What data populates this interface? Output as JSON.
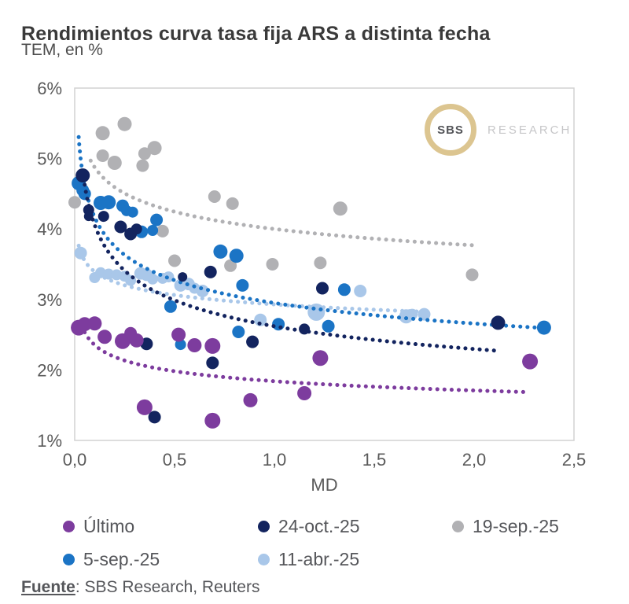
{
  "header": {
    "title": "Rendimientos curva tasa fija ARS a distinta fecha",
    "subtitle": "TEM, en %"
  },
  "logo": {
    "circle_text": "SBS",
    "side_text": "RESEARCH",
    "ring_color": "#dcc590"
  },
  "footer": {
    "source_label": "Fuente",
    "source_rest": ": SBS Research, Reuters"
  },
  "chart_data": {
    "type": "scatter",
    "title": "Rendimientos curva tasa fija ARS a distinta fecha",
    "subtitle": "TEM, en %",
    "xlabel": "MD",
    "ylabel": "TEM, en %",
    "xlim": [
      0,
      2.5
    ],
    "ylim": [
      1,
      6
    ],
    "grid": false,
    "legend_position": "bottom",
    "x_ticks": {
      "values": [
        0,
        0.5,
        1.0,
        1.5,
        2.0,
        2.5
      ],
      "labels": [
        "0,0",
        "0,5",
        "1,0",
        "1,5",
        "2,0",
        "2,5"
      ]
    },
    "y_ticks": {
      "values": [
        6,
        5,
        4,
        3,
        2,
        1
      ],
      "labels": [
        "6%",
        "5%",
        "4%",
        "3%",
        "2%",
        "1%"
      ]
    },
    "point_format": "[md_years, tem_percent, marker_radius_px]",
    "trend_format": "dotted power curve tem = a * md^b over [x0,x1]",
    "series": [
      {
        "name": "Último",
        "color": "#7d3c9e",
        "points": [
          [
            0.02,
            2.6,
            10
          ],
          [
            0.05,
            2.65,
            9
          ],
          [
            0.1,
            2.66,
            9
          ],
          [
            0.15,
            2.47,
            9
          ],
          [
            0.24,
            2.41,
            10
          ],
          [
            0.28,
            2.52,
            8
          ],
          [
            0.31,
            2.42,
            9
          ],
          [
            0.35,
            1.47,
            10
          ],
          [
            0.52,
            2.5,
            9
          ],
          [
            0.6,
            2.35,
            9
          ],
          [
            0.69,
            2.34,
            10
          ],
          [
            0.69,
            1.28,
            10
          ],
          [
            0.88,
            1.57,
            9
          ],
          [
            1.15,
            1.67,
            9
          ],
          [
            1.23,
            2.17,
            10
          ],
          [
            2.28,
            2.12,
            10
          ]
        ],
        "trend": {
          "a": 1.84,
          "b": -0.107,
          "x0": 0.05,
          "x1": 2.26
        }
      },
      {
        "name": "24-oct.-25",
        "color": "#13245f",
        "points": [
          [
            0.04,
            4.76,
            9
          ],
          [
            0.07,
            4.27,
            7
          ],
          [
            0.07,
            4.18,
            6
          ],
          [
            0.145,
            4.18,
            7
          ],
          [
            0.23,
            4.03,
            8
          ],
          [
            0.28,
            3.93,
            8
          ],
          [
            0.31,
            4.0,
            7
          ],
          [
            0.36,
            2.37,
            8
          ],
          [
            0.4,
            1.33,
            8
          ],
          [
            0.54,
            3.32,
            6
          ],
          [
            0.68,
            3.39,
            8
          ],
          [
            0.69,
            2.1,
            8
          ],
          [
            0.89,
            2.4,
            8
          ],
          [
            1.15,
            2.58,
            7
          ],
          [
            1.24,
            3.16,
            8
          ],
          [
            2.12,
            2.67,
            9
          ]
        ],
        "trend": {
          "a": 2.62,
          "b": -0.19,
          "x0": 0.05,
          "x1": 2.1
        }
      },
      {
        "name": "19-sep.-25",
        "color": "#b1b1b4",
        "points": [
          [
            0.0,
            4.38,
            8
          ],
          [
            0.14,
            5.36,
            9
          ],
          [
            0.14,
            5.04,
            8
          ],
          [
            0.2,
            4.94,
            9
          ],
          [
            0.25,
            5.49,
            9
          ],
          [
            0.34,
            4.9,
            8
          ],
          [
            0.35,
            5.07,
            8
          ],
          [
            0.4,
            5.15,
            9
          ],
          [
            0.44,
            3.97,
            8
          ],
          [
            0.5,
            3.55,
            8
          ],
          [
            0.7,
            4.46,
            8
          ],
          [
            0.78,
            3.48,
            8
          ],
          [
            0.79,
            4.36,
            8
          ],
          [
            0.99,
            3.5,
            8
          ],
          [
            1.23,
            3.52,
            8
          ],
          [
            1.33,
            4.29,
            9
          ],
          [
            1.99,
            3.35,
            8
          ]
        ],
        "trend": {
          "a": 4.0,
          "b": -0.086,
          "x0": 0.08,
          "x1": 2.0
        }
      },
      {
        "name": "5-sep.-25",
        "color": "#1b74c5",
        "points": [
          [
            0.02,
            4.65,
            9
          ],
          [
            0.04,
            4.55,
            8
          ],
          [
            0.05,
            4.5,
            8
          ],
          [
            0.13,
            4.37,
            9
          ],
          [
            0.17,
            4.38,
            9
          ],
          [
            0.24,
            4.33,
            8
          ],
          [
            0.26,
            4.26,
            7
          ],
          [
            0.29,
            4.24,
            7
          ],
          [
            0.335,
            3.96,
            8
          ],
          [
            0.39,
            3.98,
            7
          ],
          [
            0.41,
            4.13,
            8
          ],
          [
            0.48,
            2.9,
            8
          ],
          [
            0.53,
            2.36,
            7
          ],
          [
            0.73,
            3.68,
            9
          ],
          [
            0.81,
            3.62,
            9
          ],
          [
            0.82,
            2.54,
            8
          ],
          [
            0.84,
            3.2,
            8
          ],
          [
            1.02,
            2.65,
            8
          ],
          [
            1.27,
            2.62,
            8
          ],
          [
            1.35,
            3.14,
            8
          ],
          [
            2.35,
            2.6,
            9
          ]
        ],
        "trend": {
          "a": 2.95,
          "b": -0.15,
          "x0": 0.02,
          "x1": 2.35
        }
      },
      {
        "name": "11-abr.-25",
        "color": "#a9c7e9",
        "points": [
          [
            0.03,
            3.66,
            8
          ],
          [
            0.1,
            3.31,
            7
          ],
          [
            0.13,
            3.38,
            7
          ],
          [
            0.17,
            3.36,
            7
          ],
          [
            0.21,
            3.35,
            7
          ],
          [
            0.25,
            3.33,
            7
          ],
          [
            0.28,
            3.27,
            7
          ],
          [
            0.33,
            3.37,
            8
          ],
          [
            0.36,
            3.35,
            8
          ],
          [
            0.39,
            3.29,
            7
          ],
          [
            0.44,
            3.3,
            7
          ],
          [
            0.47,
            3.32,
            7
          ],
          [
            0.53,
            3.2,
            8
          ],
          [
            0.57,
            3.22,
            8
          ],
          [
            0.6,
            3.16,
            7
          ],
          [
            0.64,
            3.12,
            8
          ],
          [
            0.93,
            2.71,
            8
          ],
          [
            1.21,
            2.82,
            11
          ],
          [
            1.43,
            3.12,
            8
          ],
          [
            1.66,
            2.76,
            9
          ],
          [
            1.69,
            2.79,
            7
          ],
          [
            1.75,
            2.79,
            8
          ]
        ],
        "trend": {
          "a": 2.93,
          "b": -0.064,
          "x0": 0.02,
          "x1": 1.75
        }
      }
    ],
    "styles": {
      "plot_border_color": "#d2d2d2",
      "tick_label_color": "#5a5a5a",
      "tick_font_size": 22,
      "xlabel_font_size": 22
    }
  }
}
